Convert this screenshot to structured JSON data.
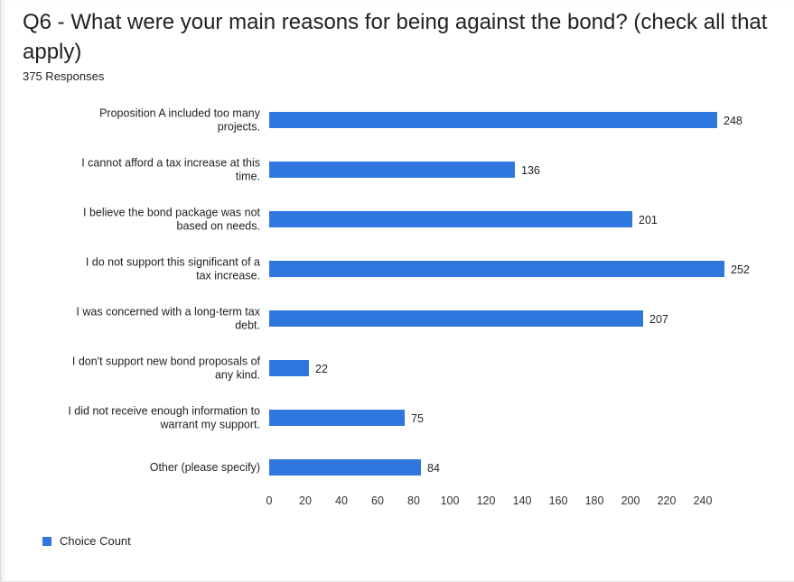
{
  "title": "Q6 - What were your main reasons for being against the bond? (check all that apply)",
  "subtitle": "375 Responses",
  "colors": {
    "bar": "#2f76de",
    "text": "#222222",
    "axis_text": "#333333"
  },
  "chart_data": {
    "type": "bar",
    "orientation": "horizontal",
    "categories": [
      [
        "Proposition A included too many",
        "projects."
      ],
      [
        "I cannot afford a tax increase at this",
        "time."
      ],
      [
        "I believe the bond package was not",
        "based on needs."
      ],
      [
        "I do not support this significant of a",
        "tax increase."
      ],
      [
        "I was concerned with a long-term tax",
        "debt."
      ],
      [
        "I don't support new bond proposals of",
        "any kind."
      ],
      [
        "I did not receive enough information to",
        "warrant my support."
      ],
      [
        "Other (please specify)"
      ]
    ],
    "series": [
      {
        "name": "Choice Count",
        "values": [
          248,
          136,
          201,
          252,
          207,
          22,
          75,
          84
        ]
      }
    ],
    "xlim": [
      0,
      260
    ],
    "xticks": [
      0,
      20,
      40,
      60,
      80,
      100,
      120,
      140,
      160,
      180,
      200,
      220,
      240
    ],
    "grid": false,
    "legend_position": "bottom-left",
    "data_labels": true
  }
}
